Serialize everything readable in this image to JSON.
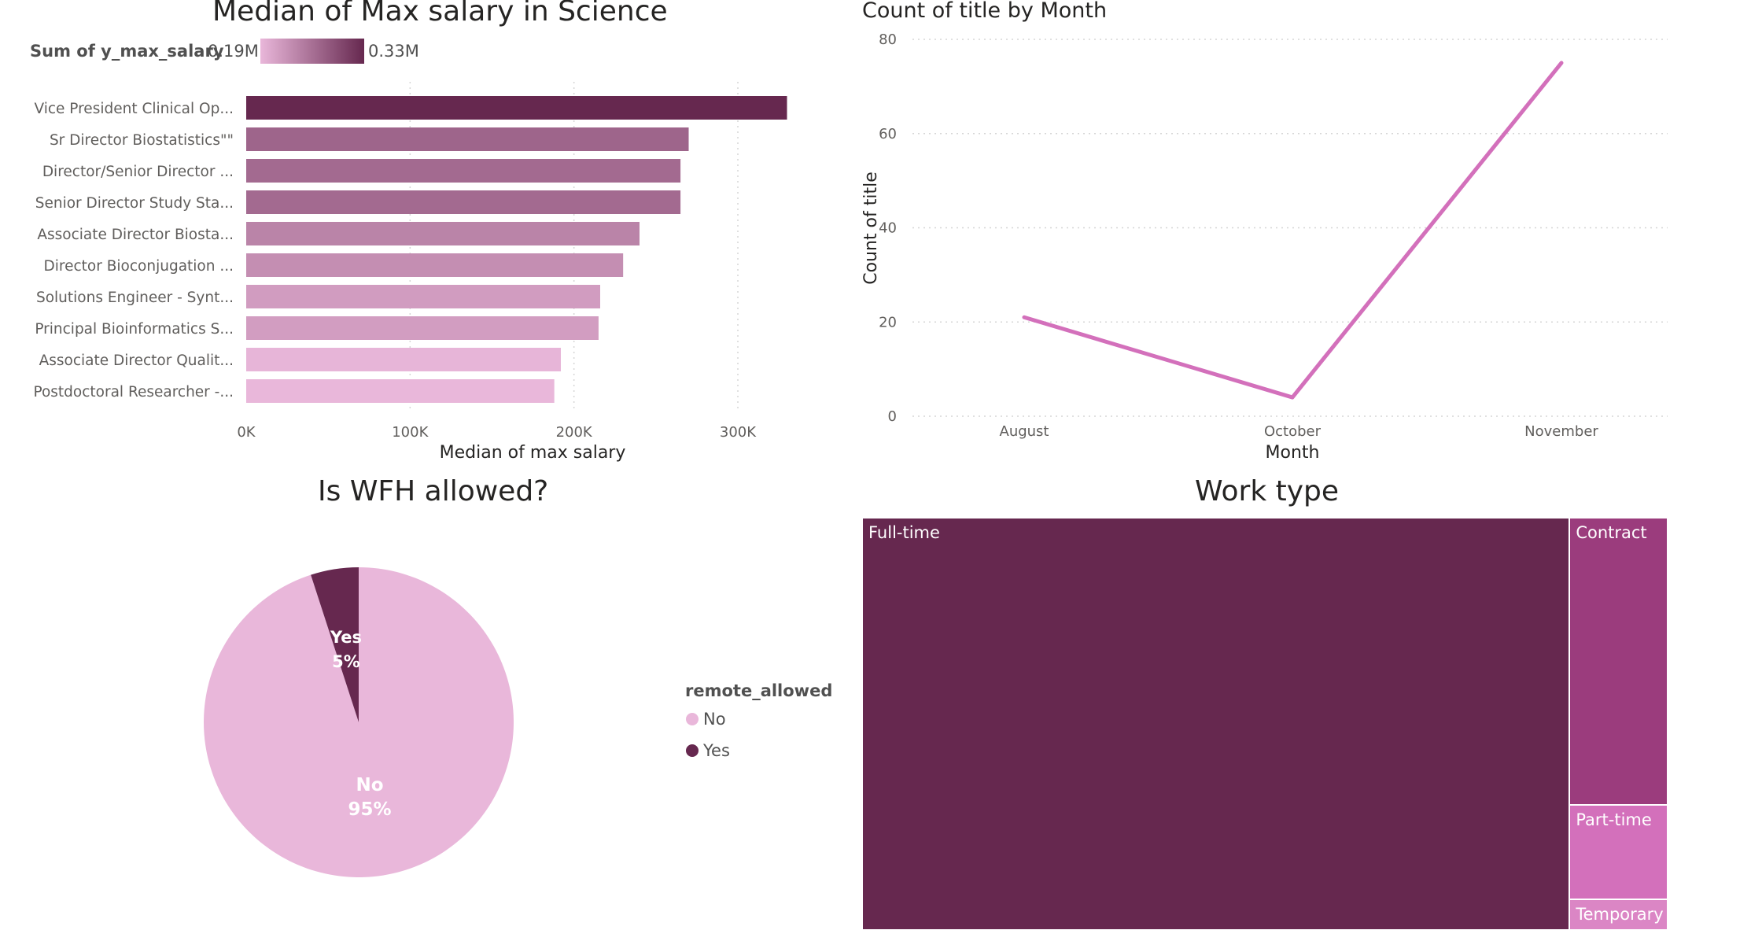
{
  "colors": {
    "dark": "#66284f",
    "light": "#e9b7da",
    "line": "#d370bb",
    "contract": "#9b3c7d",
    "parttime": "#d370bb",
    "temporary": "#db86c5",
    "grid": "#d6d6d6",
    "axis_text": "#605e5c"
  },
  "chart_data": [
    {
      "type": "bar",
      "orientation": "horizontal",
      "title": "Median of Max salary in Science",
      "xlabel": "Median of max salary",
      "ylabel": "",
      "xlim": [
        0,
        330000
      ],
      "x_ticks": [
        0,
        100000,
        200000,
        300000
      ],
      "x_tick_labels": [
        "0K",
        "100K",
        "200K",
        "300K"
      ],
      "gradient_legend": {
        "title": "Sum of y_max_salary",
        "min_label": "0.19M",
        "max_label": "0.33M",
        "min": 190000,
        "max": 330000
      },
      "categories": [
        "Vice President Clinical Op...",
        "Sr Director Biostatistics\"\"",
        "Director/Senior Director ...",
        "Senior Director Study Sta...",
        "Associate Director Biosta...",
        "Director Bioconjugation ...",
        "Solutions Engineer - Synt...",
        "Principal Bioinformatics S...",
        "Associate Director Qualit...",
        "Postdoctoral Researcher -..."
      ],
      "values": [
        330000,
        270000,
        265000,
        265000,
        240000,
        230000,
        216000,
        215000,
        192000,
        188000
      ],
      "color_values": [
        330000,
        270000,
        265000,
        265000,
        240000,
        230000,
        216000,
        215000,
        192000,
        188000
      ],
      "grid": true
    },
    {
      "type": "line",
      "title": "Count of title by Month",
      "xlabel": "Month",
      "ylabel": "Count of title",
      "categories": [
        "August",
        "October",
        "November"
      ],
      "values": [
        21,
        4,
        75
      ],
      "ylim": [
        0,
        80
      ],
      "y_ticks": [
        0,
        20,
        40,
        60,
        80
      ],
      "grid": true
    },
    {
      "type": "pie",
      "title": "Is WFH allowed?",
      "legend_title": "remote_allowed",
      "legend_position": "right",
      "slices": [
        {
          "label": "No",
          "value": 95,
          "pct_label": "95%"
        },
        {
          "label": "Yes",
          "value": 5,
          "pct_label": "5%"
        }
      ]
    },
    {
      "type": "treemap",
      "title": "Work type",
      "items": [
        {
          "label": "Full-time",
          "value": 88
        },
        {
          "label": "Contract",
          "value": 8.5
        },
        {
          "label": "Part-time",
          "value": 2.8
        },
        {
          "label": "Temporary",
          "value": 0.9
        }
      ]
    }
  ]
}
